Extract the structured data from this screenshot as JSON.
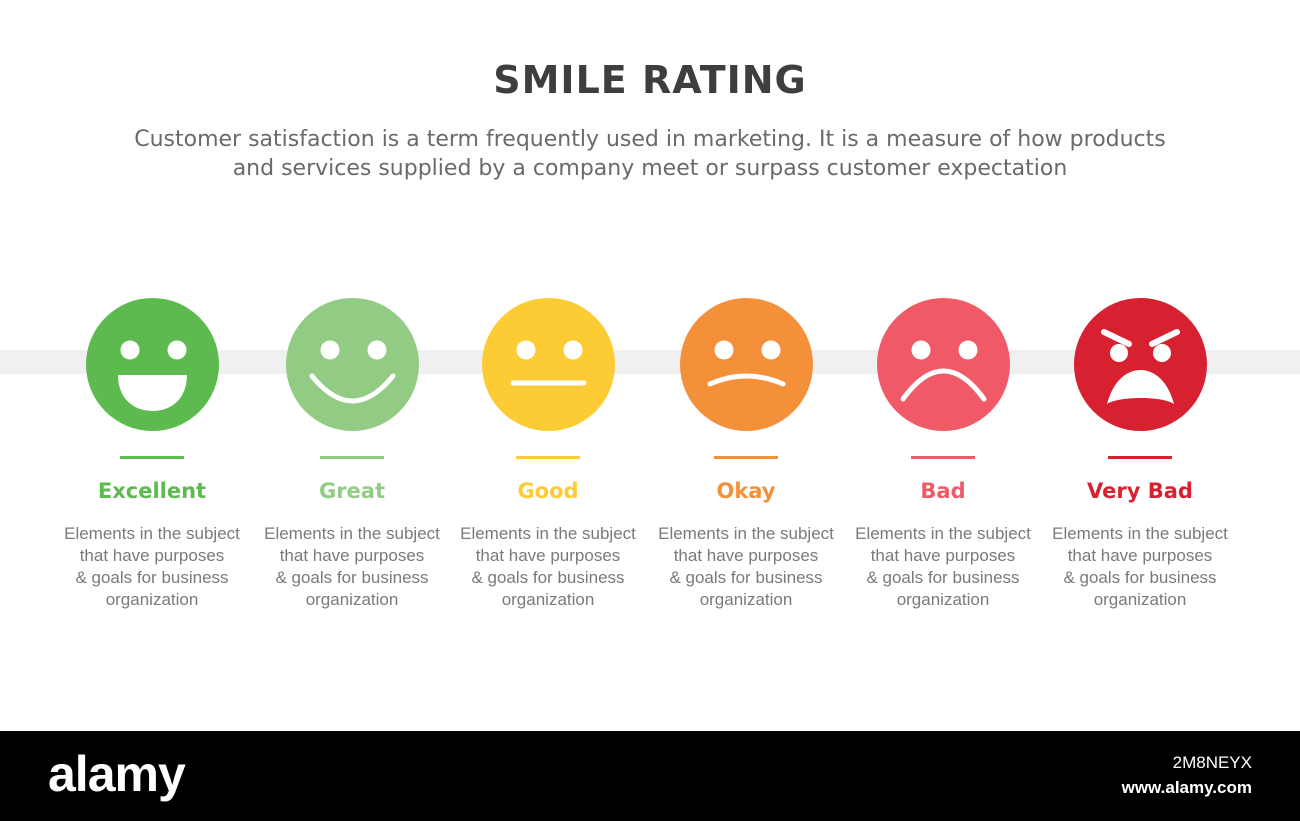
{
  "title": "SMILE RATING",
  "subtitle_line1": "Customer satisfaction is a term frequently used in marketing. It is a measure of how products",
  "subtitle_line2": "and services supplied by a company meet or surpass customer expectation",
  "ratings": [
    {
      "label": "Excellent",
      "color": "#5dba4f",
      "icon": "excellent-face-icon",
      "desc": [
        "Elements in the subject",
        "that have purposes",
        "& goals for business",
        "organization"
      ]
    },
    {
      "label": "Great",
      "color": "#92cc84",
      "icon": "great-face-icon",
      "desc": [
        "Elements in the subject",
        "that have purposes",
        "& goals for business",
        "organization"
      ]
    },
    {
      "label": "Good",
      "color": "#fdcb33",
      "icon": "good-face-icon",
      "desc": [
        "Elements in the subject",
        "that have purposes",
        "& goals for business",
        "organization"
      ]
    },
    {
      "label": "Okay",
      "color": "#f4903a",
      "icon": "okay-face-icon",
      "desc": [
        "Elements in the subject",
        "that have purposes",
        "& goals for business",
        "organization"
      ]
    },
    {
      "label": "Bad",
      "color": "#ef5a66",
      "icon": "bad-face-icon",
      "desc": [
        "Elements in the subject",
        "that have purposes",
        "& goals for business",
        "organization"
      ]
    },
    {
      "label": "Very Bad",
      "color": "#d72030",
      "icon": "very-bad-face-icon",
      "desc": [
        "Elements in the subject",
        "that have purposes",
        "& goals for business",
        "organization"
      ]
    }
  ],
  "footer": {
    "brand": "alamy",
    "image_id": "2M8NEYX",
    "site": "www.alamy.com"
  }
}
